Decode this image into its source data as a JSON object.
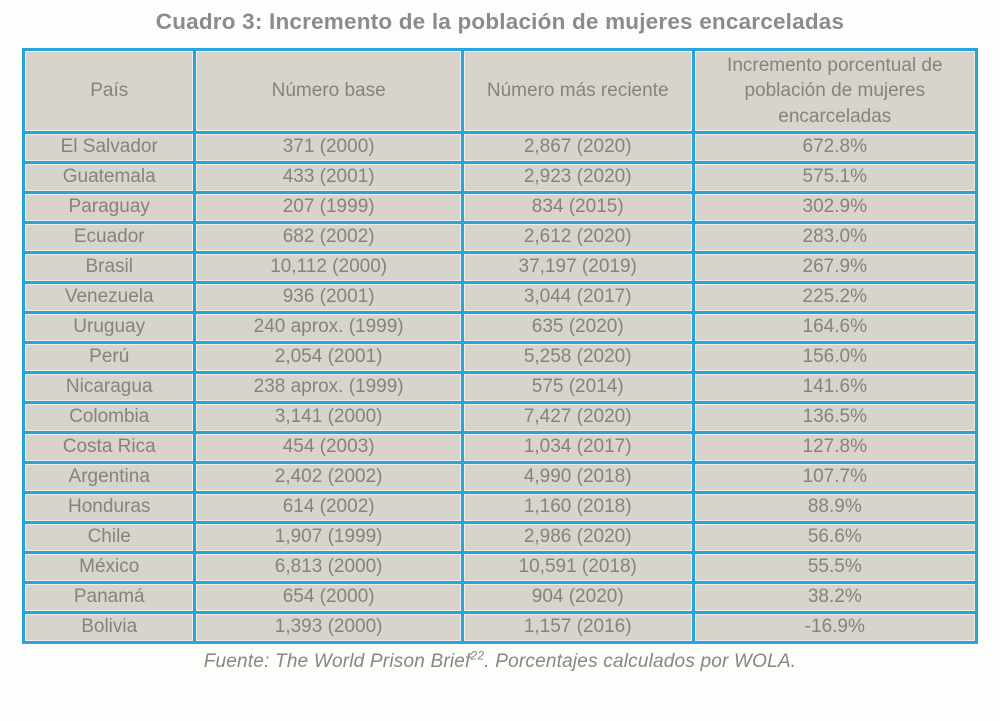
{
  "title": "Cuadro 3: Incremento de la población de mujeres encarceladas",
  "table": {
    "columns": [
      "País",
      "Número base",
      "Número más reciente",
      "Incremento porcentual de población de mujeres encarceladas"
    ],
    "rows": [
      [
        "El Salvador",
        "371 (2000)",
        "2,867 (2020)",
        "672.8%"
      ],
      [
        "Guatemala",
        "433 (2001)",
        "2,923 (2020)",
        "575.1%"
      ],
      [
        "Paraguay",
        "207 (1999)",
        "834 (2015)",
        "302.9%"
      ],
      [
        "Ecuador",
        "682 (2002)",
        "2,612 (2020)",
        "283.0%"
      ],
      [
        "Brasil",
        "10,112 (2000)",
        "37,197 (2019)",
        "267.9%"
      ],
      [
        "Venezuela",
        "936 (2001)",
        "3,044 (2017)",
        "225.2%"
      ],
      [
        "Uruguay",
        "240 aprox. (1999)",
        "635 (2020)",
        "164.6%"
      ],
      [
        "Perú",
        "2,054 (2001)",
        "5,258 (2020)",
        "156.0%"
      ],
      [
        "Nicaragua",
        "238 aprox. (1999)",
        "575 (2014)",
        "141.6%"
      ],
      [
        "Colombia",
        "3,141 (2000)",
        "7,427 (2020)",
        "136.5%"
      ],
      [
        "Costa Rica",
        "454 (2003)",
        "1,034 (2017)",
        "127.8%"
      ],
      [
        "Argentina",
        "2,402 (2002)",
        "4,990 (2018)",
        "107.7%"
      ],
      [
        "Honduras",
        "614 (2002)",
        "1,160 (2018)",
        "88.9%"
      ],
      [
        "Chile",
        "1,907 (1999)",
        "2,986 (2020)",
        "56.6%"
      ],
      [
        "México",
        "6,813 (2000)",
        "10,591 (2018)",
        "55.5%"
      ],
      [
        "Panamá",
        "654 (2000)",
        "904 (2020)",
        "38.2%"
      ],
      [
        "Bolivia",
        "1,393 (2000)",
        "1,157 (2016)",
        "-16.9%"
      ]
    ]
  },
  "caption": {
    "prefix": "Fuente: The World Prison Brief",
    "superscript": "22",
    "suffix": ". Porcentajes calculados por WOLA."
  },
  "colors": {
    "grid_blue": "#2aa3da",
    "cell_beige": "#d8d4cb",
    "cell_halo": "#efede7",
    "text_gray": "#87827b",
    "title_gray": "#8b8b89"
  }
}
